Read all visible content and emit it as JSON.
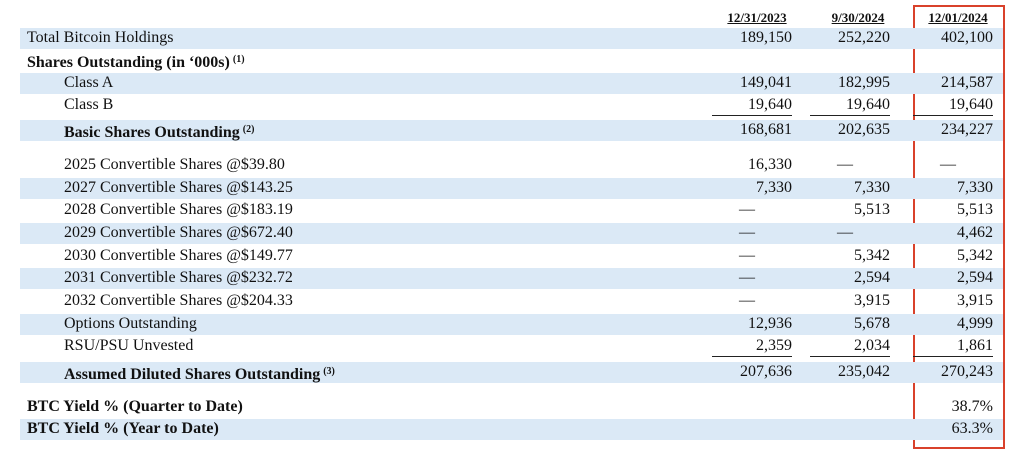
{
  "table": {
    "columns": [
      "12/31/2023",
      "9/30/2024",
      "12/01/2024"
    ],
    "rows": [
      {
        "label": "Total Bitcoin Holdings",
        "values": [
          "189,150",
          "252,220",
          "402,100"
        ]
      },
      {
        "label": "Shares Outstanding (in ‘000s)",
        "note": "(1)"
      },
      {
        "label": "Class A",
        "values": [
          "149,041",
          "182,995",
          "214,587"
        ]
      },
      {
        "label": "Class B",
        "values": [
          "19,640",
          "19,640",
          "19,640"
        ]
      },
      {
        "label": "Basic Shares Outstanding",
        "note": "(2)",
        "values": [
          "168,681",
          "202,635",
          "234,227"
        ]
      },
      {
        "label": "2025 Convertible Shares @$39.80",
        "values": [
          "16,330",
          "—",
          "—"
        ]
      },
      {
        "label": "2027 Convertible Shares @$143.25",
        "values": [
          "7,330",
          "7,330",
          "7,330"
        ]
      },
      {
        "label": "2028 Convertible Shares @$183.19",
        "values": [
          "—",
          "5,513",
          "5,513"
        ]
      },
      {
        "label": "2029 Convertible Shares @$672.40",
        "values": [
          "—",
          "—",
          "4,462"
        ]
      },
      {
        "label": "2030 Convertible Shares @$149.77",
        "values": [
          "—",
          "5,342",
          "5,342"
        ]
      },
      {
        "label": "2031 Convertible Shares @$232.72",
        "values": [
          "—",
          "2,594",
          "2,594"
        ]
      },
      {
        "label": "2032 Convertible Shares @$204.33",
        "values": [
          "—",
          "3,915",
          "3,915"
        ]
      },
      {
        "label": "Options Outstanding",
        "values": [
          "12,936",
          "5,678",
          "4,999"
        ]
      },
      {
        "label": "RSU/PSU Unvested",
        "values": [
          "2,359",
          "2,034",
          "1,861"
        ]
      },
      {
        "label": "Assumed Diluted Shares Outstanding",
        "note": "(3)",
        "values": [
          "207,636",
          "235,042",
          "270,243"
        ]
      },
      {
        "label": "BTC Yield % (Quarter to Date)",
        "values": [
          null,
          null,
          "38.7%"
        ]
      },
      {
        "label": "BTC Yield % (Year to Date)",
        "values": [
          null,
          null,
          "63.3%"
        ]
      }
    ]
  }
}
